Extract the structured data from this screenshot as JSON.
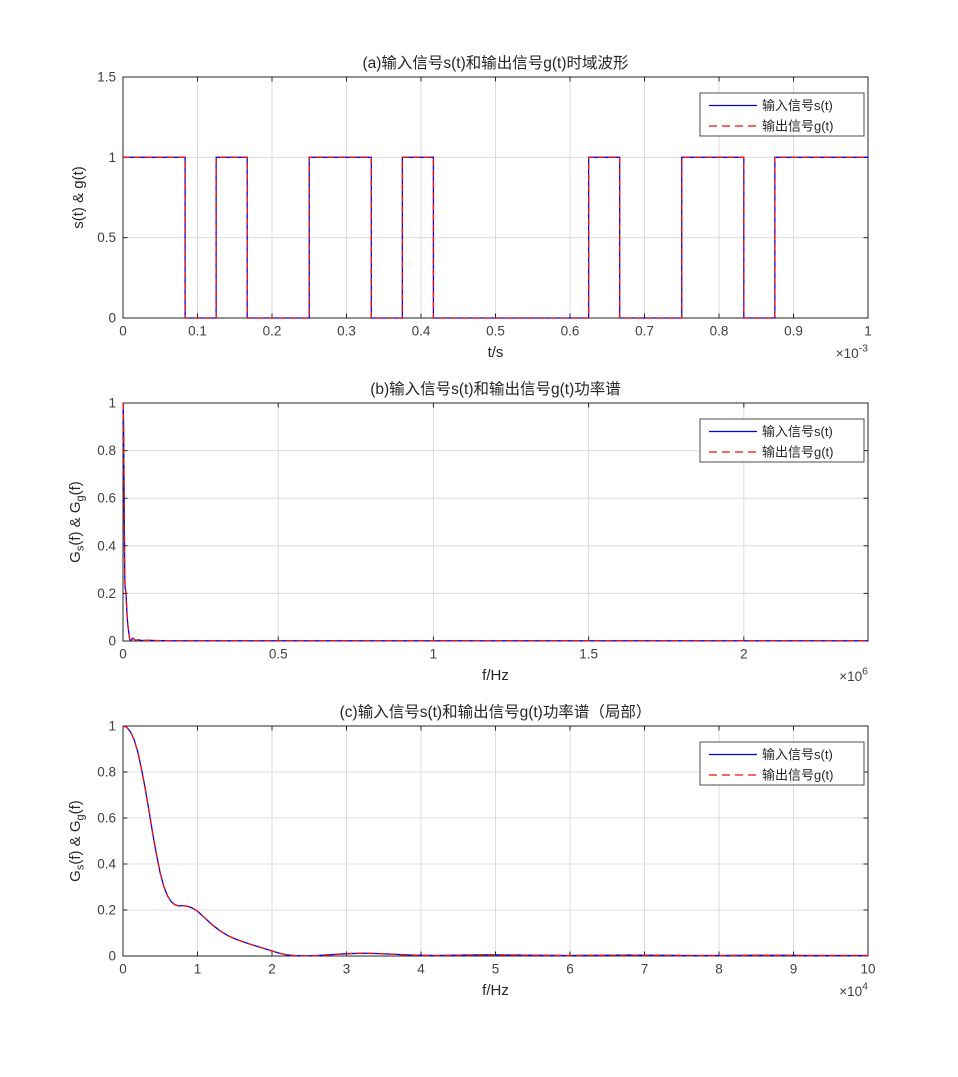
{
  "figure": {
    "background": "#ffffff",
    "axis_color": "#262626",
    "grid_color": "#dcdcdc",
    "tick_label_color": "#404040",
    "title_color": "#262626",
    "input_line_color": "#0000EE",
    "output_line_color": "#EE1111"
  },
  "legend": {
    "border_color": "#4d4d4d",
    "background": "#ffffff",
    "items": [
      {
        "name": "input-signal",
        "label": "输入信号s(t)",
        "color": "#0000EE",
        "style": "solid"
      },
      {
        "name": "output-signal",
        "label": "输出信号g(t)",
        "color": "#EE1111",
        "style": "dashed"
      }
    ]
  },
  "chart_data": [
    {
      "id": "a",
      "type": "line",
      "title": "(a)输入信号s(t)和输出信号g(t)时域波形",
      "xlabel": "t/s",
      "x_exponent": {
        "mant": "×10",
        "exp": "-3"
      },
      "ylabel_segments": [
        {
          "t": "s(t) & g(t)"
        }
      ],
      "xlim": [
        0,
        1
      ],
      "ylim": [
        0,
        1.5
      ],
      "xticks": [
        0,
        0.1,
        0.2,
        0.3,
        0.4,
        0.5,
        0.6,
        0.7,
        0.8,
        0.9,
        1
      ],
      "xtick_labels": [
        "0",
        "0.1",
        "0.2",
        "0.3",
        "0.4",
        "0.5",
        "0.6",
        "0.7",
        "0.8",
        "0.9",
        "1"
      ],
      "yticks": [
        0,
        0.5,
        1,
        1.5
      ],
      "ytick_labels": [
        "0",
        "0.5",
        "1",
        "1.5"
      ],
      "grid": true,
      "legend_position": "northeast",
      "series_note": "input s(t) blue solid and output g(t) red dashed overlap exactly",
      "points": [
        [
          0,
          1
        ],
        [
          0.08333,
          1
        ],
        [
          0.08333,
          0
        ],
        [
          0.125,
          0
        ],
        [
          0.125,
          1
        ],
        [
          0.16667,
          1
        ],
        [
          0.16667,
          0
        ],
        [
          0.25,
          0
        ],
        [
          0.25,
          1
        ],
        [
          0.33333,
          1
        ],
        [
          0.33333,
          0
        ],
        [
          0.375,
          0
        ],
        [
          0.375,
          1
        ],
        [
          0.41667,
          1
        ],
        [
          0.41667,
          0
        ],
        [
          0.625,
          0
        ],
        [
          0.625,
          1
        ],
        [
          0.66667,
          1
        ],
        [
          0.66667,
          0
        ],
        [
          0.75,
          0
        ],
        [
          0.75,
          1
        ],
        [
          0.83333,
          1
        ],
        [
          0.83333,
          0
        ],
        [
          0.875,
          0
        ],
        [
          0.875,
          1
        ],
        [
          1,
          1
        ]
      ]
    },
    {
      "id": "b",
      "type": "line",
      "title": "(b)输入信号s(t)和输出信号g(t)功率谱",
      "xlabel": "f/Hz",
      "x_exponent": {
        "mant": "×10",
        "exp": "6"
      },
      "ylabel_segments": [
        {
          "t": "G"
        },
        {
          "t": "s",
          "sub": true
        },
        {
          "t": "(f) & G"
        },
        {
          "t": "g",
          "sub": true
        },
        {
          "t": "(f)"
        }
      ],
      "xlim": [
        0,
        2.4
      ],
      "ylim": [
        0,
        1
      ],
      "xticks": [
        0,
        0.5,
        1,
        1.5,
        2
      ],
      "xtick_labels": [
        "0",
        "0.5",
        "1",
        "1.5",
        "2"
      ],
      "yticks": [
        0,
        0.2,
        0.4,
        0.6,
        0.8,
        1
      ],
      "ytick_labels": [
        "0",
        "0.2",
        "0.4",
        "0.6",
        "0.8",
        "1"
      ],
      "grid": true,
      "legend_position": "northeast",
      "series_note": "input s(t) blue solid and output g(t) red dashed overlap exactly",
      "points": [
        [
          0,
          1
        ],
        [
          0.001,
          0.975
        ],
        [
          0.002,
          0.885
        ],
        [
          0.003,
          0.725
        ],
        [
          0.004,
          0.53
        ],
        [
          0.005,
          0.36
        ],
        [
          0.006,
          0.26
        ],
        [
          0.007,
          0.222
        ],
        [
          0.008,
          0.218
        ],
        [
          0.009,
          0.213
        ],
        [
          0.01,
          0.195
        ],
        [
          0.012,
          0.135
        ],
        [
          0.014,
          0.09
        ],
        [
          0.016,
          0.063
        ],
        [
          0.018,
          0.042
        ],
        [
          0.02,
          0.022
        ],
        [
          0.022,
          0.005
        ],
        [
          0.024,
          0.001
        ],
        [
          0.028,
          0.006
        ],
        [
          0.032,
          0.012
        ],
        [
          0.036,
          0.008
        ],
        [
          0.04,
          0.003
        ],
        [
          0.05,
          0.005
        ],
        [
          0.06,
          0.002
        ],
        [
          0.08,
          0.003
        ],
        [
          0.1,
          0.002
        ],
        [
          0.15,
          0.001
        ],
        [
          0.2,
          0.001
        ],
        [
          0.3,
          0.001
        ],
        [
          0.5,
          0.001
        ],
        [
          0.75,
          0.001
        ],
        [
          1,
          0.001
        ],
        [
          1.25,
          0.001
        ],
        [
          1.5,
          0.001
        ],
        [
          1.75,
          0.001
        ],
        [
          2,
          0.001
        ],
        [
          2.2,
          0.001
        ],
        [
          2.4,
          0.001
        ]
      ]
    },
    {
      "id": "c",
      "type": "line",
      "title": "(c)输入信号s(t)和输出信号g(t)功率谱（局部）",
      "xlabel": "f/Hz",
      "x_exponent": {
        "mant": "×10",
        "exp": "4"
      },
      "ylabel_segments": [
        {
          "t": "G"
        },
        {
          "t": "s",
          "sub": true
        },
        {
          "t": "(f) & G"
        },
        {
          "t": "g",
          "sub": true
        },
        {
          "t": "(f)"
        }
      ],
      "xlim": [
        0,
        10
      ],
      "ylim": [
        0,
        1
      ],
      "xticks": [
        0,
        1,
        2,
        3,
        4,
        5,
        6,
        7,
        8,
        9,
        10
      ],
      "xtick_labels": [
        "0",
        "1",
        "2",
        "3",
        "4",
        "5",
        "6",
        "7",
        "8",
        "9",
        "10"
      ],
      "yticks": [
        0,
        0.2,
        0.4,
        0.6,
        0.8,
        1
      ],
      "ytick_labels": [
        "0",
        "0.2",
        "0.4",
        "0.6",
        "0.8",
        "1"
      ],
      "grid": true,
      "legend_position": "northeast",
      "series_note": "input s(t) blue solid and output g(t) red dashed overlap exactly",
      "points": [
        [
          0,
          1
        ],
        [
          0.05,
          0.995
        ],
        [
          0.1,
          0.975
        ],
        [
          0.15,
          0.94
        ],
        [
          0.2,
          0.885
        ],
        [
          0.25,
          0.81
        ],
        [
          0.3,
          0.725
        ],
        [
          0.35,
          0.63
        ],
        [
          0.4,
          0.53
        ],
        [
          0.45,
          0.44
        ],
        [
          0.5,
          0.36
        ],
        [
          0.55,
          0.3
        ],
        [
          0.6,
          0.26
        ],
        [
          0.65,
          0.235
        ],
        [
          0.7,
          0.222
        ],
        [
          0.75,
          0.218
        ],
        [
          0.8,
          0.219
        ],
        [
          0.85,
          0.217
        ],
        [
          0.9,
          0.213
        ],
        [
          0.95,
          0.205
        ],
        [
          1,
          0.195
        ],
        [
          1.1,
          0.165
        ],
        [
          1.2,
          0.135
        ],
        [
          1.3,
          0.11
        ],
        [
          1.4,
          0.09
        ],
        [
          1.5,
          0.075
        ],
        [
          1.6,
          0.063
        ],
        [
          1.7,
          0.052
        ],
        [
          1.8,
          0.042
        ],
        [
          1.9,
          0.032
        ],
        [
          2,
          0.022
        ],
        [
          2.1,
          0.012
        ],
        [
          2.2,
          0.005
        ],
        [
          2.3,
          0.002
        ],
        [
          2.4,
          0.001
        ],
        [
          2.5,
          0.001
        ],
        [
          2.6,
          0.002
        ],
        [
          2.8,
          0.006
        ],
        [
          3,
          0.01
        ],
        [
          3.2,
          0.012
        ],
        [
          3.4,
          0.011
        ],
        [
          3.6,
          0.008
        ],
        [
          3.8,
          0.005
        ],
        [
          4,
          0.003
        ],
        [
          4.2,
          0.002
        ],
        [
          4.4,
          0.003
        ],
        [
          4.6,
          0.004
        ],
        [
          4.8,
          0.005
        ],
        [
          5,
          0.005
        ],
        [
          5.3,
          0.004
        ],
        [
          5.6,
          0.003
        ],
        [
          6,
          0.002
        ],
        [
          6.4,
          0.003
        ],
        [
          6.8,
          0.004
        ],
        [
          7.2,
          0.003
        ],
        [
          7.6,
          0.002
        ],
        [
          8,
          0.002
        ],
        [
          8.4,
          0.003
        ],
        [
          8.8,
          0.003
        ],
        [
          9.2,
          0.002
        ],
        [
          9.6,
          0.002
        ],
        [
          10,
          0.002
        ]
      ]
    }
  ]
}
